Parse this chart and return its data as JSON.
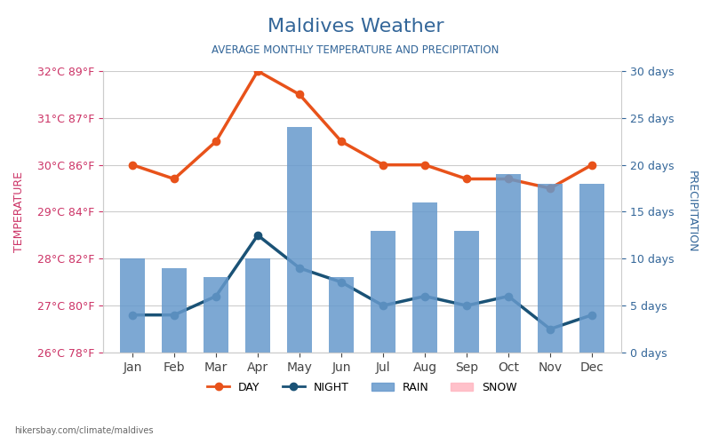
{
  "title": "Maldives Weather",
  "subtitle": "AVERAGE MONTHLY TEMPERATURE AND PRECIPITATION",
  "months": [
    "Jan",
    "Feb",
    "Mar",
    "Apr",
    "May",
    "Jun",
    "Jul",
    "Aug",
    "Sep",
    "Oct",
    "Nov",
    "Dec"
  ],
  "day_temp": [
    30.0,
    29.7,
    30.5,
    32.0,
    31.5,
    30.5,
    30.0,
    30.0,
    29.7,
    29.7,
    29.5,
    30.0
  ],
  "night_temp": [
    26.8,
    26.8,
    27.2,
    28.5,
    27.8,
    27.5,
    27.0,
    27.2,
    27.0,
    27.2,
    26.5,
    26.8
  ],
  "rain_days": [
    10,
    9,
    8,
    10,
    24,
    8,
    13,
    16,
    13,
    19,
    18,
    18
  ],
  "temp_ylim": [
    26,
    32
  ],
  "temp_yticks": [
    26,
    27,
    28,
    29,
    30,
    31,
    32
  ],
  "temp_ylabels": [
    "26°C 78°F",
    "27°C 80°F",
    "28°C 82°F",
    "29°C 84°F",
    "30°C 86°F",
    "31°C 87°F",
    "32°C 89°F"
  ],
  "precip_ylim": [
    0,
    30
  ],
  "precip_yticks": [
    0,
    5,
    10,
    15,
    20,
    25,
    30
  ],
  "precip_ylabels": [
    "0 days",
    "5 days",
    "10 days",
    "15 days",
    "20 days",
    "25 days",
    "30 days"
  ],
  "bar_color": "#6699CC",
  "day_color": "#E8521A",
  "night_color": "#1A5276",
  "background_color": "#FFFFFF",
  "plot_bg_color": "#FFFFFF",
  "grid_color": "#CCCCCC",
  "title_color": "#336699",
  "subtitle_color": "#336699",
  "left_label_color": "#CC3366",
  "right_label_color": "#336699",
  "watermark": "hikersbay.com/climate/maldives",
  "legend_labels": [
    "DAY",
    "NIGHT",
    "RAIN",
    "SNOW"
  ],
  "figsize": [
    8.0,
    5.0
  ],
  "dpi": 100
}
